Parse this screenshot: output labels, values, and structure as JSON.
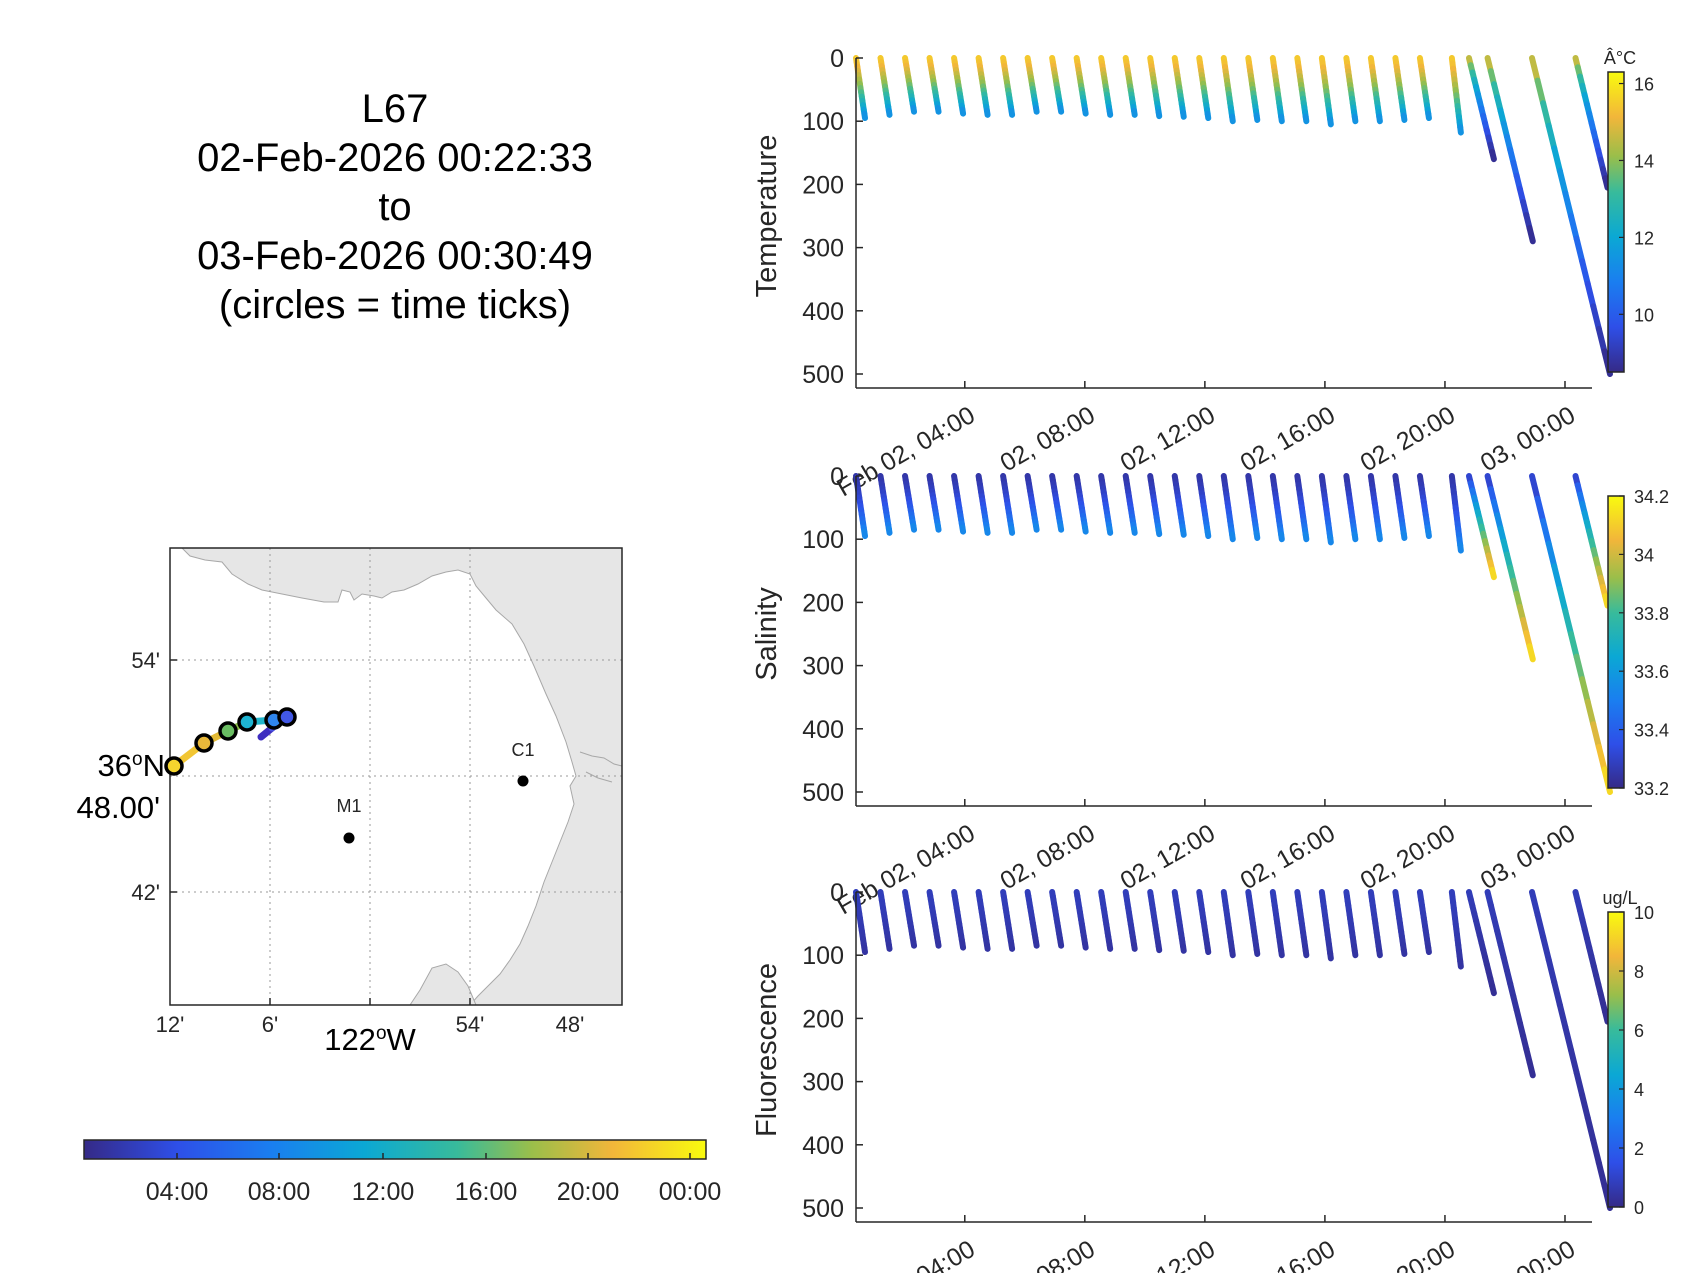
{
  "title": {
    "mission": "L67",
    "start": "02-Feb-2026 00:22:33",
    "to": "to",
    "end": "03-Feb-2026 00:30:49",
    "note": "(circles = time ticks)"
  },
  "map": {
    "lat_label_main": "36°N",
    "lat_label_main_deg": "36",
    "lat_label_main_suffix": "N",
    "lat_label_sub": "48.00'",
    "lat_ticks": [
      "54'",
      "42'"
    ],
    "lon_ticks": [
      "12'",
      "6'",
      "54'",
      "48'"
    ],
    "lon_label_deg": "122",
    "lon_label_suffix": "W",
    "stations": [
      {
        "name": "C1"
      },
      {
        "name": "M1"
      }
    ],
    "track_colors": [
      "#f0c832",
      "#e8b838",
      "#a0be3a",
      "#3cbca2",
      "#22b4d4",
      "#3a78f0",
      "#4a58e4",
      "#3e2ec0"
    ],
    "land_color": "#e6e6e6",
    "coast_color": "#a8a8a8"
  },
  "time_colorbar": {
    "ticks": [
      "04:00",
      "08:00",
      "12:00",
      "16:00",
      "20:00",
      "00:00"
    ]
  },
  "chart_data": [
    {
      "type": "line",
      "name": "Temperature",
      "ylabel": "Temperature",
      "ylim": [
        0,
        500
      ],
      "yticks": [
        "0",
        "100",
        "200",
        "300",
        "400",
        "500"
      ],
      "xlim_hours": [
        0.375,
        24.9
      ],
      "xticks": [
        "Feb 02, 04:00",
        "02, 08:00",
        "02, 12:00",
        "02, 16:00",
        "02, 20:00",
        "03, 00:00"
      ],
      "colorbar": {
        "unit": "Â°C",
        "min": 8.5,
        "max": 16.3,
        "ticks": [
          "16",
          "14",
          "12",
          "10"
        ],
        "tick_values": [
          16,
          14,
          12,
          10
        ]
      },
      "profiles_max_depth": [
        95,
        90,
        85,
        85,
        88,
        90,
        90,
        85,
        85,
        88,
        90,
        90,
        92,
        93,
        95,
        100,
        98,
        100,
        100,
        105,
        100,
        100,
        98,
        95,
        118,
        160,
        290,
        500,
        205
      ],
      "surface_value": 15.5,
      "bottom_value_shallow": 11.2,
      "bottom_value_deep": 8.5
    },
    {
      "type": "line",
      "name": "Salinity",
      "ylabel": "Salinity",
      "ylim": [
        0,
        500
      ],
      "yticks": [
        "0",
        "100",
        "200",
        "300",
        "400",
        "500"
      ],
      "xlim_hours": [
        0.375,
        24.9
      ],
      "xticks": [
        "Feb 02, 04:00",
        "02, 08:00",
        "02, 12:00",
        "02, 16:00",
        "02, 20:00",
        "03, 00:00"
      ],
      "colorbar": {
        "unit": "",
        "min": 33.2,
        "max": 34.2,
        "ticks": [
          "34.2",
          "34",
          "33.8",
          "33.6",
          "33.4",
          "33.2"
        ],
        "tick_values": [
          34.2,
          34.0,
          33.8,
          33.6,
          33.4,
          33.2
        ]
      },
      "profiles_max_depth": [
        95,
        90,
        85,
        85,
        88,
        90,
        90,
        85,
        85,
        88,
        90,
        90,
        92,
        93,
        95,
        100,
        98,
        100,
        100,
        105,
        100,
        100,
        98,
        95,
        118,
        160,
        290,
        500,
        205
      ],
      "surface_value": 33.25,
      "bottom_value_shallow": 33.55,
      "bottom_value_deep": 34.15
    },
    {
      "type": "line",
      "name": "Fluorescence",
      "ylabel": "Fluorescence",
      "ylim": [
        0,
        500
      ],
      "yticks": [
        "0",
        "100",
        "200",
        "300",
        "400",
        "500"
      ],
      "xlim_hours": [
        0.375,
        24.9
      ],
      "xticks": [
        "Feb 02, 04:00",
        "02, 08:00",
        "02, 12:00",
        "02, 16:00",
        "02, 20:00",
        "03, 00:00"
      ],
      "colorbar": {
        "unit": "ug/L",
        "min": 0,
        "max": 10,
        "ticks": [
          "10",
          "8",
          "6",
          "4",
          "2",
          "0"
        ],
        "tick_values": [
          10,
          8,
          6,
          4,
          2,
          0
        ]
      },
      "profiles_max_depth": [
        95,
        90,
        85,
        85,
        88,
        90,
        90,
        85,
        85,
        88,
        90,
        90,
        92,
        93,
        95,
        100,
        98,
        100,
        100,
        105,
        100,
        100,
        98,
        95,
        118,
        160,
        290,
        500,
        205
      ],
      "surface_value": 0.8,
      "bottom_value_shallow": 0.4,
      "bottom_value_deep": 0.2
    }
  ]
}
